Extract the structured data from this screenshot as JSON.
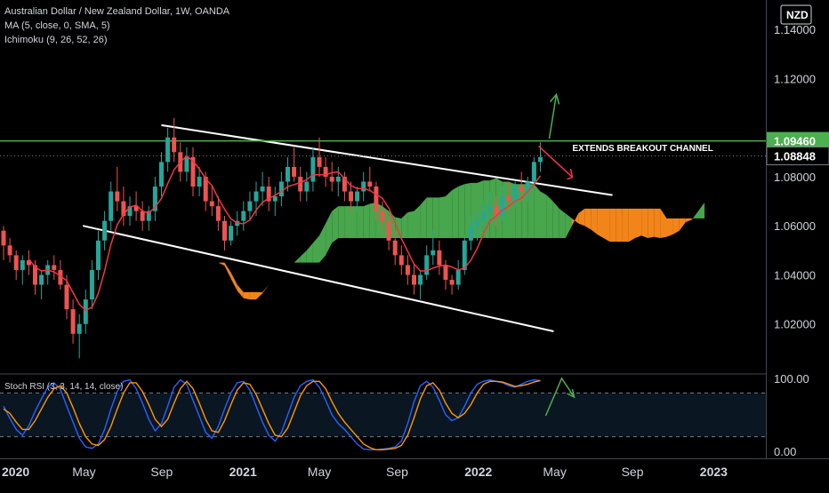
{
  "header": {
    "symbol_line": "Australian Dollar / New Zealand Dollar, 1W, OANDA",
    "ma_line": "MA (5, close, 0, SMA, 5)",
    "ichimoku_line": "Ichimoku (9, 26, 52, 26)",
    "currency": "NZD"
  },
  "colors": {
    "background": "#000000",
    "up_candle": "#26a69a",
    "down_candle": "#ef5350",
    "ma_line": "#f23645",
    "cloud_bull": "#4caf50",
    "cloud_bear": "#ff8c1a",
    "resistance_line": "#4caf50",
    "channel_line": "#ffffff",
    "arrow_up": "#4caf50",
    "arrow_down": "#f23645",
    "rsi_k": "#2962ff",
    "rsi_d": "#ff9800"
  },
  "chart_data": {
    "type": "candlestick",
    "symbol": "AUDNZD",
    "interval": "1W",
    "ylim": [
      1.0,
      1.152
    ],
    "y_ticks": [
      "1.14000",
      "1.12000",
      "1.08000",
      "1.06000",
      "1.04000",
      "1.02000"
    ],
    "x_ticks": [
      "2020",
      "May",
      "Sep",
      "2021",
      "May",
      "Sep",
      "2022",
      "May",
      "Sep",
      "2023"
    ],
    "price_labels": [
      {
        "value": 1.0946,
        "text": "1.09460",
        "style": "resistance"
      },
      {
        "value": 1.08848,
        "text": "1.08848",
        "style": "last"
      }
    ],
    "resistance_level": 1.0946,
    "annotation": "EXTENDS BREAKOUT CHANNEL",
    "channel": {
      "upper": [
        {
          "x": "2020-09",
          "y": 1.101
        },
        {
          "x": "2022-08",
          "y": 1.0725
        }
      ],
      "lower": [
        {
          "x": "2020-05",
          "y": 1.06
        },
        {
          "x": "2022-05",
          "y": 1.017
        }
      ]
    },
    "candles": [
      [
        1.058,
        1.06,
        1.046,
        1.052
      ],
      [
        1.052,
        1.055,
        1.045,
        1.048
      ],
      [
        1.048,
        1.05,
        1.038,
        1.042
      ],
      [
        1.042,
        1.048,
        1.036,
        1.046
      ],
      [
        1.046,
        1.05,
        1.04,
        1.044
      ],
      [
        1.044,
        1.046,
        1.032,
        1.036
      ],
      [
        1.036,
        1.042,
        1.03,
        1.04
      ],
      [
        1.04,
        1.046,
        1.036,
        1.044
      ],
      [
        1.044,
        1.048,
        1.038,
        1.042
      ],
      [
        1.042,
        1.046,
        1.034,
        1.036
      ],
      [
        1.036,
        1.04,
        1.022,
        1.026
      ],
      [
        1.026,
        1.03,
        1.012,
        1.016
      ],
      [
        1.016,
        1.024,
        1.006,
        1.02
      ],
      [
        1.02,
        1.034,
        1.016,
        1.03
      ],
      [
        1.03,
        1.046,
        1.026,
        1.042
      ],
      [
        1.042,
        1.058,
        1.038,
        1.054
      ],
      [
        1.054,
        1.066,
        1.05,
        1.062
      ],
      [
        1.062,
        1.078,
        1.058,
        1.074
      ],
      [
        1.074,
        1.084,
        1.066,
        1.07
      ],
      [
        1.07,
        1.076,
        1.06,
        1.064
      ],
      [
        1.064,
        1.072,
        1.06,
        1.068
      ],
      [
        1.068,
        1.074,
        1.062,
        1.066
      ],
      [
        1.066,
        1.07,
        1.058,
        1.062
      ],
      [
        1.062,
        1.068,
        1.058,
        1.066
      ],
      [
        1.066,
        1.08,
        1.062,
        1.076
      ],
      [
        1.076,
        1.09,
        1.072,
        1.086
      ],
      [
        1.086,
        1.1,
        1.082,
        1.096
      ],
      [
        1.096,
        1.104,
        1.086,
        1.09
      ],
      [
        1.09,
        1.094,
        1.078,
        1.082
      ],
      [
        1.082,
        1.092,
        1.078,
        1.088
      ],
      [
        1.088,
        1.092,
        1.072,
        1.076
      ],
      [
        1.076,
        1.084,
        1.072,
        1.08
      ],
      [
        1.08,
        1.082,
        1.066,
        1.07
      ],
      [
        1.07,
        1.076,
        1.064,
        1.068
      ],
      [
        1.068,
        1.072,
        1.058,
        1.062
      ],
      [
        1.062,
        1.064,
        1.05,
        1.054
      ],
      [
        1.054,
        1.062,
        1.052,
        1.06
      ],
      [
        1.06,
        1.066,
        1.056,
        1.062
      ],
      [
        1.062,
        1.07,
        1.058,
        1.066
      ],
      [
        1.066,
        1.074,
        1.062,
        1.07
      ],
      [
        1.07,
        1.078,
        1.064,
        1.074
      ],
      [
        1.074,
        1.082,
        1.068,
        1.076
      ],
      [
        1.076,
        1.08,
        1.066,
        1.07
      ],
      [
        1.07,
        1.076,
        1.064,
        1.072
      ],
      [
        1.072,
        1.082,
        1.068,
        1.078
      ],
      [
        1.078,
        1.088,
        1.074,
        1.084
      ],
      [
        1.084,
        1.092,
        1.078,
        1.08
      ],
      [
        1.08,
        1.084,
        1.07,
        1.074
      ],
      [
        1.074,
        1.082,
        1.07,
        1.078
      ],
      [
        1.078,
        1.092,
        1.074,
        1.088
      ],
      [
        1.088,
        1.096,
        1.08,
        1.084
      ],
      [
        1.084,
        1.088,
        1.076,
        1.08
      ],
      [
        1.08,
        1.086,
        1.074,
        1.078
      ],
      [
        1.078,
        1.084,
        1.072,
        1.08
      ],
      [
        1.08,
        1.082,
        1.07,
        1.074
      ],
      [
        1.074,
        1.078,
        1.066,
        1.07
      ],
      [
        1.07,
        1.076,
        1.066,
        1.074
      ],
      [
        1.074,
        1.082,
        1.07,
        1.078
      ],
      [
        1.078,
        1.084,
        1.074,
        1.076
      ],
      [
        1.076,
        1.078,
        1.062,
        1.066
      ],
      [
        1.066,
        1.07,
        1.058,
        1.062
      ],
      [
        1.062,
        1.064,
        1.05,
        1.054
      ],
      [
        1.054,
        1.058,
        1.044,
        1.048
      ],
      [
        1.048,
        1.052,
        1.04,
        1.044
      ],
      [
        1.044,
        1.048,
        1.036,
        1.04
      ],
      [
        1.04,
        1.044,
        1.032,
        1.036
      ],
      [
        1.036,
        1.042,
        1.03,
        1.04
      ],
      [
        1.04,
        1.052,
        1.038,
        1.048
      ],
      [
        1.048,
        1.058,
        1.044,
        1.05
      ],
      [
        1.05,
        1.054,
        1.04,
        1.044
      ],
      [
        1.044,
        1.046,
        1.034,
        1.038
      ],
      [
        1.038,
        1.04,
        1.032,
        1.036
      ],
      [
        1.036,
        1.046,
        1.034,
        1.042
      ],
      [
        1.042,
        1.056,
        1.04,
        1.054
      ],
      [
        1.054,
        1.064,
        1.05,
        1.06
      ],
      [
        1.06,
        1.066,
        1.054,
        1.062
      ],
      [
        1.062,
        1.07,
        1.058,
        1.066
      ],
      [
        1.066,
        1.074,
        1.062,
        1.068
      ],
      [
        1.068,
        1.072,
        1.06,
        1.064
      ],
      [
        1.064,
        1.076,
        1.062,
        1.072
      ],
      [
        1.072,
        1.078,
        1.066,
        1.07
      ],
      [
        1.07,
        1.078,
        1.068,
        1.076
      ],
      [
        1.076,
        1.082,
        1.07,
        1.074
      ],
      [
        1.074,
        1.08,
        1.07,
        1.078
      ],
      [
        1.078,
        1.088,
        1.076,
        1.086
      ],
      [
        1.086,
        1.094,
        1.082,
        1.088
      ]
    ],
    "stoch_rsi": {
      "label": "Stoch RSI (3, 3, 14, 14, close)",
      "ylim": [
        0,
        100
      ],
      "y_ticks": [
        "100.00",
        "0.00"
      ],
      "upper_band": 80,
      "lower_band": 20,
      "k": [
        62,
        45,
        30,
        22,
        35,
        55,
        72,
        88,
        94,
        85,
        62,
        40,
        18,
        6,
        4,
        10,
        30,
        58,
        82,
        96,
        98,
        86,
        66,
        44,
        28,
        38,
        62,
        88,
        98,
        92,
        70,
        48,
        26,
        18,
        34,
        58,
        80,
        94,
        96,
        84,
        62,
        40,
        22,
        14,
        26,
        50,
        74,
        90,
        96,
        98,
        88,
        70,
        50,
        38,
        30,
        20,
        10,
        3,
        2,
        2,
        3,
        4,
        6,
        14,
        38,
        68,
        90,
        96,
        88,
        70,
        50,
        42,
        46,
        62,
        80,
        92,
        96,
        98,
        96,
        94,
        90,
        88,
        92,
        96,
        98,
        97
      ],
      "d": [
        58,
        52,
        40,
        30,
        30,
        42,
        58,
        74,
        86,
        90,
        80,
        60,
        38,
        20,
        10,
        8,
        16,
        34,
        58,
        80,
        94,
        94,
        82,
        64,
        44,
        34,
        44,
        66,
        86,
        96,
        86,
        66,
        44,
        28,
        26,
        42,
        64,
        84,
        94,
        92,
        78,
        58,
        38,
        22,
        20,
        32,
        54,
        76,
        90,
        96,
        96,
        86,
        68,
        52,
        40,
        30,
        20,
        10,
        5,
        2,
        2,
        3,
        4,
        8,
        22,
        46,
        72,
        90,
        94,
        84,
        66,
        52,
        46,
        52,
        64,
        80,
        92,
        96,
        96,
        95,
        92,
        89,
        90,
        92,
        95,
        97
      ]
    }
  }
}
